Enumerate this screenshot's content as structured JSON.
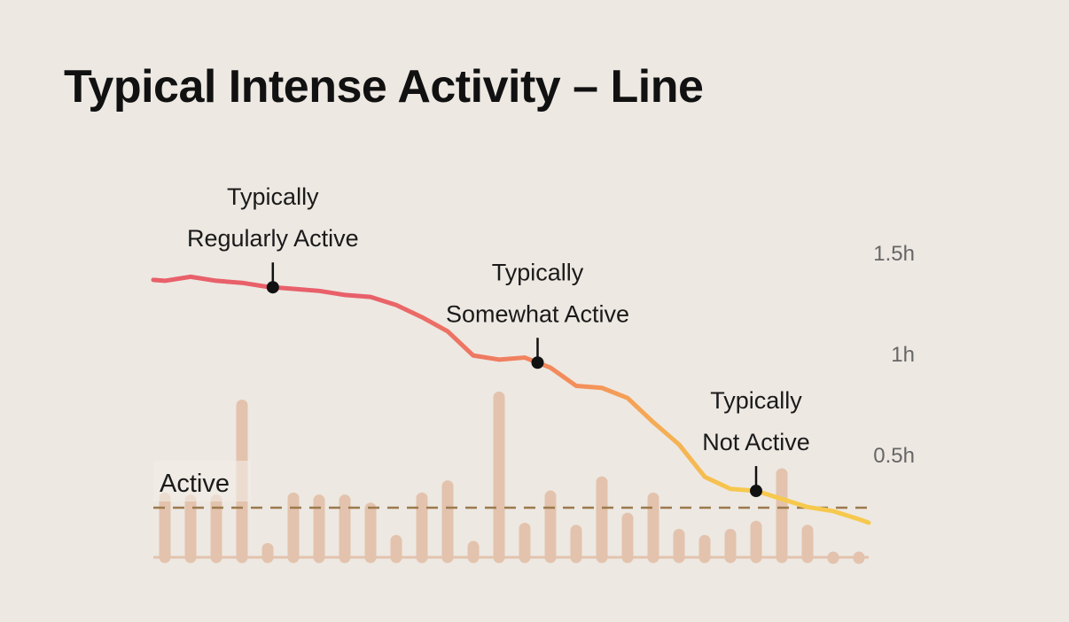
{
  "title": "Typical Intense Activity – Line",
  "chart_data": {
    "type": "bar+line",
    "title": "Typical Intense Activity – Line",
    "y_unit": "h",
    "ylim": [
      0,
      1.6
    ],
    "y_ticks": [
      {
        "value": 0.5,
        "label": "0.5h"
      },
      {
        "value": 1,
        "label": "1h"
      },
      {
        "value": 1.5,
        "label": "1.5h"
      }
    ],
    "grid": false,
    "bars": {
      "color": "#e3c3ad",
      "values": [
        0.31,
        0.3,
        0.3,
        0.77,
        0.06,
        0.31,
        0.3,
        0.3,
        0.26,
        0.1,
        0.31,
        0.37,
        0.07,
        0.81,
        0.16,
        0.32,
        0.15,
        0.39,
        0.21,
        0.31,
        0.13,
        0.1,
        0.13,
        0.17,
        0.43,
        0.15,
        0.01,
        0.01
      ]
    },
    "line": {
      "colors": [
        "#e8606a",
        "#f4905a",
        "#f6c94e"
      ],
      "values": [
        1.36,
        1.38,
        1.36,
        1.35,
        1.33,
        1.32,
        1.31,
        1.29,
        1.28,
        1.24,
        1.18,
        1.11,
        0.99,
        0.97,
        0.98,
        0.93,
        0.84,
        0.83,
        0.78,
        0.66,
        0.55,
        0.39,
        0.33,
        0.32,
        0.28,
        0.24,
        0.22,
        0.18
      ]
    },
    "threshold": {
      "value": 0.25,
      "label": "Active",
      "color": "#9c7a4e"
    },
    "annotations": [
      {
        "index": 4.2,
        "lines": [
          "Typically",
          "Regularly Active"
        ]
      },
      {
        "index": 14.5,
        "lines": [
          "Typically",
          "Somewhat Active"
        ]
      },
      {
        "index": 23,
        "lines": [
          "Typically",
          "Not Active"
        ]
      }
    ]
  }
}
